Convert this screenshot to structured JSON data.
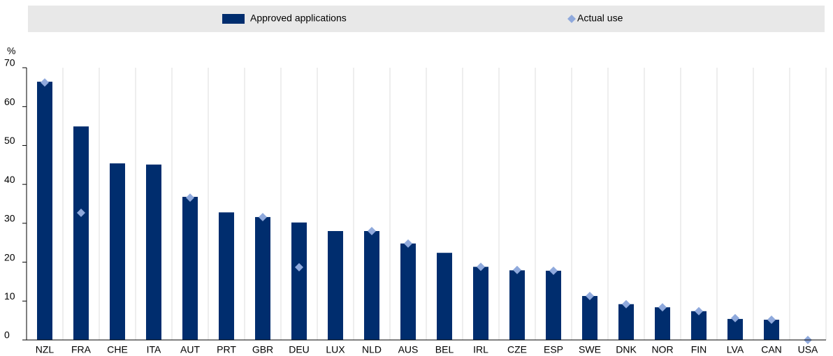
{
  "chart_data": {
    "type": "bar",
    "y_label": "%",
    "categories": [
      "NZL",
      "FRA",
      "CHE",
      "ITA",
      "AUT",
      "PRT",
      "GBR",
      "DEU",
      "LUX",
      "NLD",
      "AUS",
      "BEL",
      "IRL",
      "CZE",
      "ESP",
      "SWE",
      "DNK",
      "NOR",
      "FIN",
      "LVA",
      "CAN",
      "USA"
    ],
    "series": [
      {
        "name": "Approved applications",
        "color": "#002d6e",
        "marker": "bar",
        "values": [
          66.4,
          54.9,
          45.4,
          45.1,
          36.8,
          32.8,
          31.6,
          30.2,
          28.0,
          28.0,
          24.8,
          22.4,
          18.8,
          17.9,
          17.8,
          11.3,
          9.2,
          8.4,
          7.4,
          5.4,
          5.2,
          0
        ]
      },
      {
        "name": "Actual use",
        "color": "#8fa9dc",
        "marker": "diamond",
        "values": [
          66.2,
          32.7,
          null,
          null,
          36.6,
          null,
          31.6,
          18.7,
          null,
          28.0,
          24.8,
          null,
          18.8,
          18.0,
          17.8,
          11.3,
          9.2,
          8.4,
          7.4,
          5.6,
          5.2,
          0
        ]
      }
    ],
    "ylim": [
      0,
      70
    ],
    "yticks": [
      0,
      10,
      20,
      30,
      40,
      50,
      60,
      70
    ],
    "grid": "x"
  }
}
